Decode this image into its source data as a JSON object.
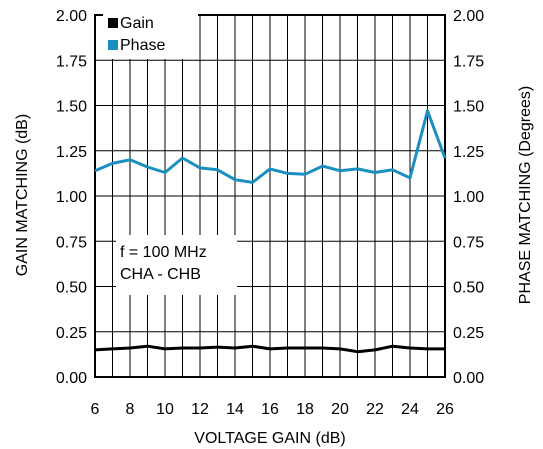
{
  "chart_data": {
    "type": "line",
    "xlabel": "VOLTAGE GAIN (dB)",
    "ylabel_left": "GAIN MATCHING (dB)",
    "ylabel_right": "PHASE MATCHING (Degrees)",
    "xlim": [
      6,
      26
    ],
    "ylim_left": [
      0,
      2
    ],
    "ylim_right": [
      0,
      2
    ],
    "x_ticks": [
      6,
      8,
      10,
      12,
      14,
      16,
      18,
      20,
      22,
      24,
      26
    ],
    "y_ticks_left": [
      "0.00",
      "0.25",
      "0.50",
      "0.75",
      "1.00",
      "1.25",
      "1.50",
      "1.75",
      "2.00"
    ],
    "y_ticks_right": [
      "0.00",
      "0.25",
      "0.50",
      "0.75",
      "1.00",
      "1.25",
      "1.50",
      "1.75",
      "2.00"
    ],
    "grid": true,
    "legend_position": "top-left",
    "series": [
      {
        "name": "Gain",
        "color": "#000000",
        "axis": "left",
        "x": [
          6,
          7,
          8,
          9,
          10,
          11,
          12,
          13,
          14,
          15,
          16,
          17,
          18,
          19,
          20,
          21,
          22,
          23,
          24,
          25,
          26
        ],
        "values": [
          0.15,
          0.155,
          0.16,
          0.17,
          0.155,
          0.16,
          0.16,
          0.165,
          0.16,
          0.17,
          0.155,
          0.16,
          0.16,
          0.16,
          0.155,
          0.14,
          0.15,
          0.17,
          0.16,
          0.155,
          0.155
        ]
      },
      {
        "name": "Phase",
        "color": "#1a8fc0",
        "axis": "right",
        "x": [
          6,
          7,
          8,
          9,
          10,
          11,
          12,
          13,
          14,
          15,
          16,
          17,
          18,
          19,
          20,
          21,
          22,
          23,
          24,
          25,
          26
        ],
        "values": [
          1.14,
          1.18,
          1.2,
          1.16,
          1.13,
          1.21,
          1.155,
          1.145,
          1.09,
          1.075,
          1.15,
          1.125,
          1.12,
          1.165,
          1.14,
          1.15,
          1.13,
          1.145,
          1.1,
          1.47,
          1.21
        ]
      }
    ],
    "annotations": [
      "f = 100 MHz",
      "CHA - CHB"
    ]
  }
}
